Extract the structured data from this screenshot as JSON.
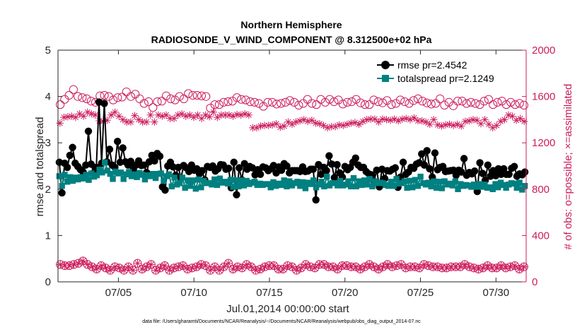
{
  "chart_data": {
    "type": "line",
    "title": "Northern Hemisphere",
    "subtitle": "RADIOSONDE_V_WIND_COMPONENT @ 8.312500e+02 hPa",
    "xlabel": "Jul.01,2014 00:00:00 start",
    "ylabel_left": "rmse and totalspread",
    "ylabel_right": "# of obs: o=possible; ×=assimilated",
    "footnote": "data file: /Users/gharamti/Documents/NCAR/Reanalysis/~/Documents/NCAR/Reanalysis/webpub/obs_diag_output_2014-07.nc",
    "xlim": [
      1,
      32
    ],
    "ylim_left": [
      0,
      5
    ],
    "ylim_right": [
      0,
      2000
    ],
    "x_ticks": [
      {
        "day": 5,
        "label": "07/05"
      },
      {
        "day": 10,
        "label": "07/10"
      },
      {
        "day": 15,
        "label": "07/15"
      },
      {
        "day": 20,
        "label": "07/20"
      },
      {
        "day": 25,
        "label": "07/25"
      },
      {
        "day": 30,
        "label": "07/30"
      }
    ],
    "y_ticks_left": [
      "0",
      "1",
      "2",
      "3",
      "4",
      "5"
    ],
    "y_ticks_right": [
      "0",
      "400",
      "800",
      "1200",
      "1600",
      "2000"
    ],
    "colors": {
      "rmse": "#000000",
      "totalspread": "#008080",
      "obs": "#cc1c5c",
      "axis": "#262626"
    },
    "legend": {
      "position": "top-right",
      "entries": [
        "rmse pr=2.4542",
        "totalspread pr=2.1249"
      ]
    },
    "series": [
      {
        "name": "rmse",
        "axis": "left",
        "marker": "circle",
        "values": [
          2.58,
          1.92,
          2.56,
          2.47,
          2.73,
          2.9,
          2.56,
          2.49,
          2.42,
          2.37,
          2.52,
          3.25,
          2.54,
          2.35,
          2.47,
          3.88,
          2.56,
          3.85,
          2.59,
          2.86,
          2.52,
          2.47,
          3.03,
          2.58,
          2.89,
          2.59,
          2.52,
          2.6,
          2.42,
          2.52,
          2.61,
          2.51,
          2.52,
          2.36,
          2.59,
          2.73,
          2.61,
          2.77,
          2.71,
          2.05,
          1.98,
          2.5,
          2.58,
          2.48,
          2.3,
          2.47,
          2.24,
          2.51,
          2.46,
          2.38,
          2.52,
          2.41,
          2.44,
          2.33,
          2.4,
          2.2,
          2.49,
          2.47,
          2.5,
          2.39,
          2.44,
          2.53,
          2.52,
          2.43,
          2.45,
          2.03,
          2.58,
          1.88,
          2.46,
          2.2,
          2.55,
          2.43,
          2.49,
          2.46,
          2.31,
          2.42,
          2.32,
          2.48,
          2.46,
          2.4,
          2.44,
          2.51,
          2.35,
          2.48,
          2.41,
          2.55,
          2.5,
          2.35,
          2.4,
          2.4,
          2.4,
          2.38,
          2.48,
          2.38,
          2.39,
          2.43,
          2.43,
          1.77,
          2.53,
          2.32,
          2.47,
          2.4,
          2.72,
          2.54,
          2.25,
          2.53,
          2.35,
          2.26,
          2.49,
          2.42,
          2.47,
          2.58,
          2.67,
          2.52,
          2.47,
          2.47,
          2.38,
          2.33,
          2.31,
          2.17,
          2.41,
          2.05,
          2.43,
          2.23,
          2.4,
          2.39,
          2.43,
          2.46,
          2.04,
          2.26,
          2.58,
          2.32,
          2.37,
          2.47,
          2.45,
          2.54,
          2.57,
          2.76,
          2.52,
          2.83,
          2.44,
          2.26,
          2.78,
          2.42,
          2.47,
          2.49,
          2.38,
          2.39,
          2.4,
          2.41,
          2.3,
          2.41,
          2.37,
          2.66,
          2.3,
          2.36,
          2.33,
          2.39,
          1.95,
          2.57,
          2.34,
          2.19,
          2.52,
          2.28,
          2.4,
          2.29,
          2.44,
          2.32,
          2.44,
          2.32,
          2.32,
          2.45,
          2.49,
          2.28,
          2.33,
          2.31,
          2.37
        ]
      },
      {
        "name": "totalspread",
        "axis": "left",
        "marker": "square",
        "values": [
          2.28,
          2.07,
          2.31,
          2.16,
          2.26,
          2.18,
          2.25,
          2.21,
          2.26,
          2.23,
          2.31,
          2.2,
          2.34,
          2.27,
          2.3,
          2.42,
          2.36,
          2.58,
          2.4,
          2.33,
          2.22,
          2.38,
          2.34,
          2.36,
          2.22,
          2.32,
          2.37,
          2.28,
          2.32,
          2.26,
          2.35,
          2.31,
          2.21,
          2.3,
          2.28,
          2.33,
          2.24,
          2.33,
          2.34,
          2.18,
          2.28,
          2.32,
          2.06,
          2.25,
          2.1,
          2.13,
          2.25,
          2.03,
          2.19,
          2.07,
          2.19,
          2.01,
          2.21,
          2.04,
          2.18,
          2.13,
          2.13,
          2.1,
          2.21,
          2.09,
          2.23,
          2.14,
          2.16,
          2.12,
          2.2,
          2.05,
          2.19,
          2.06,
          2.19,
          2.08,
          2.18,
          2.11,
          2.14,
          2.16,
          2.09,
          2.12,
          2.09,
          2.11,
          2.11,
          2.04,
          2.15,
          2.07,
          2.12,
          2.09,
          2.19,
          2.06,
          2.17,
          2.08,
          2.13,
          2.16,
          2.07,
          2.15,
          2.02,
          2.14,
          2.11,
          2.19,
          2.04,
          2.1,
          2.16,
          2.06,
          2.27,
          2.08,
          2.13,
          2.13,
          2.08,
          2.18,
          2.08,
          2.1,
          2.17,
          2.06,
          2.24,
          2.06,
          2.17,
          2.09,
          2.19,
          2.1,
          2.22,
          2.06,
          2.17,
          2.13,
          2.14,
          2.13,
          2.09,
          2.07,
          2.16,
          2.07,
          2.22,
          2.12,
          2.13,
          2.17,
          2.03,
          2.18,
          2.04,
          2.2,
          2.07,
          2.27,
          2.13,
          2.1,
          2.14,
          2.06,
          2.17,
          2.03,
          2.16,
          2.02,
          2.17,
          2.1,
          2.12,
          2.08,
          2.17,
          2.0,
          2.11,
          2.07,
          2.09,
          2.08,
          2.05,
          2.1,
          2.05,
          2.11,
          2.05,
          2.1,
          2.03,
          2.04,
          2.0,
          2.11,
          2.04,
          2.14,
          2.09,
          2.03,
          2.1,
          2.13,
          2.12,
          2.03,
          2.14,
          1.99,
          2.07
        ]
      },
      {
        "name": "possible_obs",
        "axis": "right",
        "marker": "open-circle",
        "values": [
          1530,
          1575,
          1610,
          1660,
          1600,
          1590,
          1580,
          1560,
          1550,
          1605,
          1610,
          1600,
          1570,
          1590,
          1595,
          1640,
          1600,
          1620,
          1580,
          1540,
          1555,
          1505,
          1555,
          1560,
          1605,
          1580,
          1570,
          1600,
          1580,
          1625,
          1610,
          1610,
          1605,
          1600,
          1500,
          1530,
          1530,
          1550,
          1555,
          1560,
          1590,
          1575,
          1570,
          1555,
          1550,
          1540,
          1515,
          1550,
          1550,
          1535,
          1540,
          1550,
          1565,
          1550,
          1525,
          1540,
          1575,
          1540,
          1530,
          1575,
          1550,
          1575,
          1555,
          1570,
          1535,
          1550,
          1555,
          1575,
          1545,
          1530,
          1530,
          1570,
          1555,
          1545,
          1565,
          1530,
          1540,
          1570,
          1555,
          1540,
          1565,
          1580,
          1560,
          1545,
          1535,
          1540,
          1580,
          1525,
          1550,
          1520,
          1560,
          1560,
          1540,
          1550,
          1540,
          1530,
          1560,
          1575,
          1530,
          1550,
          1560,
          1530,
          1550,
          1530,
          1540,
          1525
        ]
      },
      {
        "name": "assimilated_obs",
        "axis": "right",
        "marker": "asterisk",
        "values": [
          1370,
          1420,
          1425,
          1430,
          1420,
          1450,
          1430,
          1465,
          1450,
          1440,
          1390,
          1385,
          1395,
          1440,
          1465,
          1430,
          1400,
          1380,
          1380,
          1435,
          1400,
          1380,
          1380,
          1440,
          1380,
          1440,
          1430,
          1440,
          1410,
          1410,
          1440,
          1450,
          1430,
          1440,
          1420,
          1440,
          1410,
          1440,
          1425,
          1465,
          1420,
          1440,
          1440,
          1440,
          1430,
          1445,
          1440,
          1450,
          1440,
          1330,
          1330,
          1345,
          1350,
          1350,
          1355,
          1365,
          1335,
          1345,
          1380,
          1360,
          1380,
          1390,
          1400,
          1385,
          1395,
          1370,
          1365,
          1350,
          1330,
          1340,
          1340,
          1355,
          1350,
          1360,
          1370,
          1375,
          1360,
          1385,
          1400,
          1405,
          1405,
          1380,
          1405,
          1400,
          1395,
          1405,
          1390,
          1405,
          1410,
          1400,
          1415,
          1390,
          1390,
          1380,
          1360,
          1400,
          1355,
          1345,
          1355,
          1360,
          1350,
          1360,
          1345,
          1385,
          1390,
          1400,
          1395,
          1365,
          1400,
          1360,
          1330,
          1350,
          1385,
          1400,
          1440,
          1430,
          1395,
          1410,
          1385
        ]
      },
      {
        "name": "possible_obs_low",
        "axis": "right",
        "marker": "open-circle",
        "values": [
          150,
          140,
          140,
          150,
          160,
          180,
          150,
          130,
          110,
          140,
          120,
          100,
          130,
          120,
          100,
          130,
          100,
          160,
          110,
          130,
          150,
          100,
          120,
          140,
          100,
          120,
          130,
          140,
          110,
          120,
          130,
          150,
          140,
          100,
          130,
          100,
          130,
          160,
          110,
          130,
          120,
          150,
          130,
          100,
          110,
          130,
          140,
          140,
          110,
          110,
          140,
          130,
          100,
          120,
          150,
          130,
          120,
          150,
          150,
          130,
          130,
          110,
          140,
          140,
          130,
          130,
          110,
          130,
          150,
          130,
          110,
          130,
          150,
          130,
          140,
          150,
          120,
          130,
          130,
          120,
          150,
          140,
          130,
          130,
          120,
          120,
          130,
          130,
          130,
          150,
          130,
          120,
          110,
          120,
          140,
          120,
          120,
          140,
          120,
          130,
          140,
          110,
          130
        ]
      },
      {
        "name": "assimilated_obs_low",
        "axis": "right",
        "marker": "asterisk",
        "values": [
          150,
          140,
          140,
          150,
          160,
          180,
          150,
          130,
          110,
          140,
          120,
          100,
          130,
          120,
          100,
          130,
          100,
          160,
          110,
          130,
          150,
          100,
          120,
          140,
          100,
          120,
          130,
          140,
          110,
          120,
          130,
          150,
          140,
          100,
          130,
          100,
          130,
          160,
          110,
          130,
          120,
          150,
          130,
          100,
          110,
          130,
          140,
          140,
          110,
          110,
          140,
          130,
          100,
          120,
          150,
          130,
          120,
          150,
          150,
          130,
          130,
          110,
          140,
          140,
          130,
          130,
          110,
          130,
          150,
          130,
          110,
          130,
          150,
          130,
          140,
          150,
          120,
          130,
          130,
          120,
          150,
          140,
          130,
          130,
          120,
          120,
          130,
          130,
          130,
          150,
          130,
          120,
          110,
          120,
          140,
          120,
          120,
          140,
          120,
          130,
          140,
          110,
          130
        ]
      }
    ]
  }
}
